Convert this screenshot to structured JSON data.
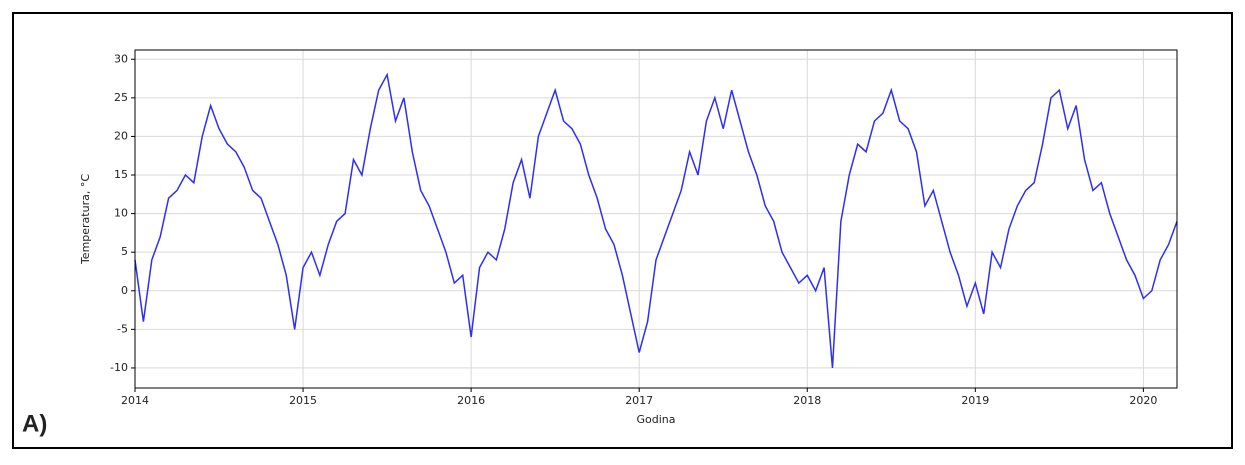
{
  "chart_data": {
    "type": "line",
    "x_label": "Godina",
    "y_label": "Temperatura, °C",
    "annotation": "A)",
    "x": [
      2014,
      2014.05,
      2014.1,
      2014.15,
      2014.2,
      2014.25,
      2014.3,
      2014.35,
      2014.4,
      2014.45,
      2014.5,
      2014.55,
      2014.6,
      2014.65,
      2014.7,
      2014.75,
      2014.8,
      2014.85,
      2014.9,
      2014.95,
      2015,
      2015.05,
      2015.1,
      2015.15,
      2015.2,
      2015.25,
      2015.3,
      2015.35,
      2015.4,
      2015.45,
      2015.5,
      2015.55,
      2015.6,
      2015.65,
      2015.7,
      2015.75,
      2015.8,
      2015.85,
      2015.9,
      2015.95,
      2016,
      2016.05,
      2016.1,
      2016.15,
      2016.2,
      2016.25,
      2016.3,
      2016.35,
      2016.4,
      2016.45,
      2016.5,
      2016.55,
      2016.6,
      2016.65,
      2016.7,
      2016.75,
      2016.8,
      2016.85,
      2016.9,
      2016.95,
      2017,
      2017.05,
      2017.1,
      2017.15,
      2017.2,
      2017.25,
      2017.3,
      2017.35,
      2017.4,
      2017.45,
      2017.5,
      2017.55,
      2017.6,
      2017.65,
      2017.7,
      2017.75,
      2017.8,
      2017.85,
      2017.9,
      2017.95,
      2018,
      2018.05,
      2018.1,
      2018.15,
      2018.2,
      2018.25,
      2018.3,
      2018.35,
      2018.4,
      2018.45,
      2018.5,
      2018.55,
      2018.6,
      2018.65,
      2018.7,
      2018.75,
      2018.8,
      2018.85,
      2018.9,
      2018.95,
      2019,
      2019.05,
      2019.1,
      2019.15,
      2019.2,
      2019.25,
      2019.3,
      2019.35,
      2019.4,
      2019.45,
      2019.5,
      2019.55,
      2019.6,
      2019.65,
      2019.7,
      2019.75,
      2019.8,
      2019.85,
      2019.9,
      2019.95,
      2020,
      2020.05,
      2020.1,
      2020.15,
      2020.2
    ],
    "series": [
      {
        "color": "#2e2ef5",
        "values": [
          4,
          -4,
          4,
          7,
          12,
          13,
          15,
          14,
          20,
          24,
          21,
          19,
          18,
          16,
          13,
          12,
          9,
          6,
          2,
          -5,
          3,
          5,
          2,
          6,
          9,
          10,
          17,
          15,
          21,
          26,
          28,
          22,
          25,
          18,
          13,
          11,
          8,
          5,
          1,
          2,
          -6,
          3,
          5,
          4,
          8,
          14,
          17,
          12,
          20,
          23,
          26,
          22,
          21,
          19,
          15,
          12,
          8,
          6,
          2,
          -3,
          -8,
          -4,
          4,
          7,
          10,
          13,
          18,
          15,
          22,
          25,
          21,
          26,
          22,
          18,
          15,
          11,
          9,
          5,
          3,
          1,
          2,
          0,
          3,
          -10,
          9,
          15,
          19,
          18,
          22,
          23,
          26,
          22,
          21,
          18,
          11,
          13,
          9,
          5,
          2,
          -2,
          1,
          -3,
          5,
          3,
          8,
          11,
          13,
          14,
          19,
          25,
          26,
          21,
          24,
          17,
          13,
          14,
          10,
          7,
          4,
          2,
          -1,
          0,
          4,
          6,
          9
        ]
      }
    ],
    "xlim": [
      2014,
      2020.2
    ],
    "xticks": [
      2014,
      2015,
      2016,
      2017,
      2018,
      2019,
      2020
    ],
    "ylim": [
      -12.6,
      31.2
    ],
    "yticks": [
      -10,
      -5,
      0,
      5,
      10,
      15,
      20,
      25,
      30
    ],
    "grid": true
  }
}
